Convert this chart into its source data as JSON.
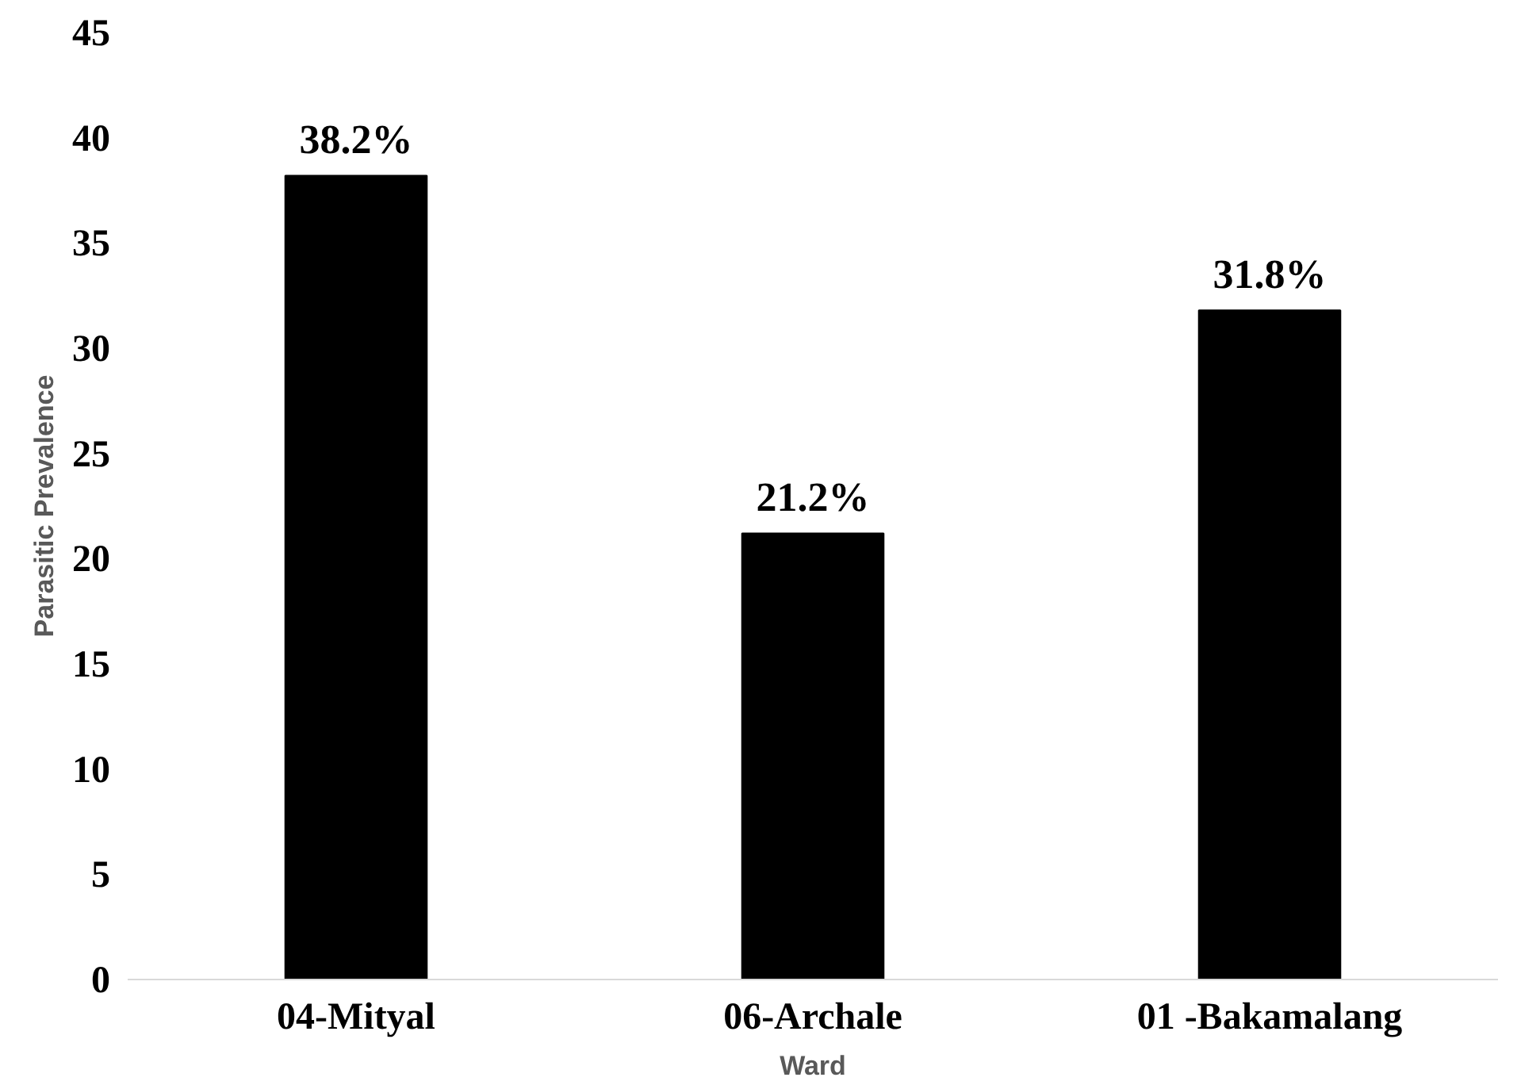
{
  "chart_data": {
    "type": "bar",
    "xlabel": "Ward",
    "ylabel": "Parasitic Prevalence",
    "categories": [
      "04-Mityal",
      "06-Archale",
      "01 -Bakamalang"
    ],
    "values": [
      38.2,
      21.2,
      31.8
    ],
    "color": "#000000",
    "value_labels": [
      "38.2%",
      "21.2%",
      "31.8%"
    ],
    "ylim": [
      0,
      45
    ],
    "yticks": [
      0,
      5,
      10,
      15,
      20,
      25,
      30,
      35,
      40,
      45
    ],
    "grid": false
  }
}
